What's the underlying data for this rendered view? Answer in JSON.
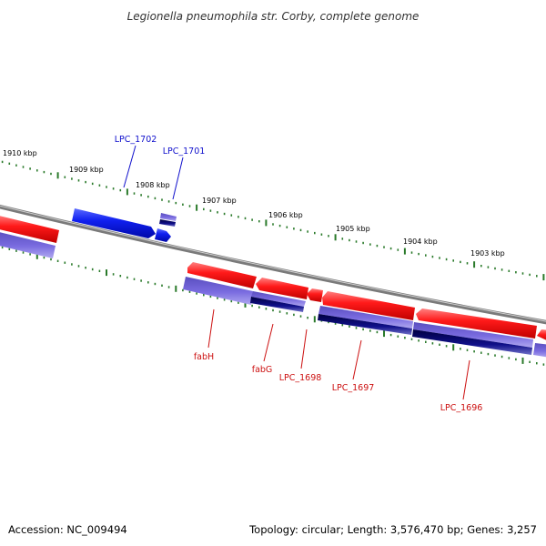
{
  "title": "Legionella pneumophila str. Corby, complete genome",
  "kbp_labels": [
    "1910 kbp",
    "1909 kbp",
    "1908 kbp",
    "1907 kbp",
    "1906 kbp",
    "1905 kbp",
    "1904 kbp",
    "1903 kbp"
  ],
  "gene_labels": [
    {
      "text": "LPC_1702",
      "strand": "plus"
    },
    {
      "text": "LPC_1701",
      "strand": "plus"
    },
    {
      "text": "fabH",
      "strand": "minus"
    },
    {
      "text": "fabG",
      "strand": "minus"
    },
    {
      "text": "LPC_1698",
      "strand": "minus"
    },
    {
      "text": "LPC_1697",
      "strand": "minus"
    },
    {
      "text": "LPC_1696",
      "strand": "minus"
    }
  ],
  "footer": {
    "accession": "Accession: NC_009494",
    "summary": "Topology: circular; Length: 3,576,470 bp; Genes: 3,257"
  },
  "colors": {
    "plus_label": "#1010cc",
    "minus_label": "#cc1010",
    "tick": "#2a7a2a",
    "backbone": "#888888",
    "forward_gene": "#ff1010",
    "reverse_gene": "#1020e0",
    "cds": "#6a5acd",
    "cds_dark": "#10106a"
  }
}
